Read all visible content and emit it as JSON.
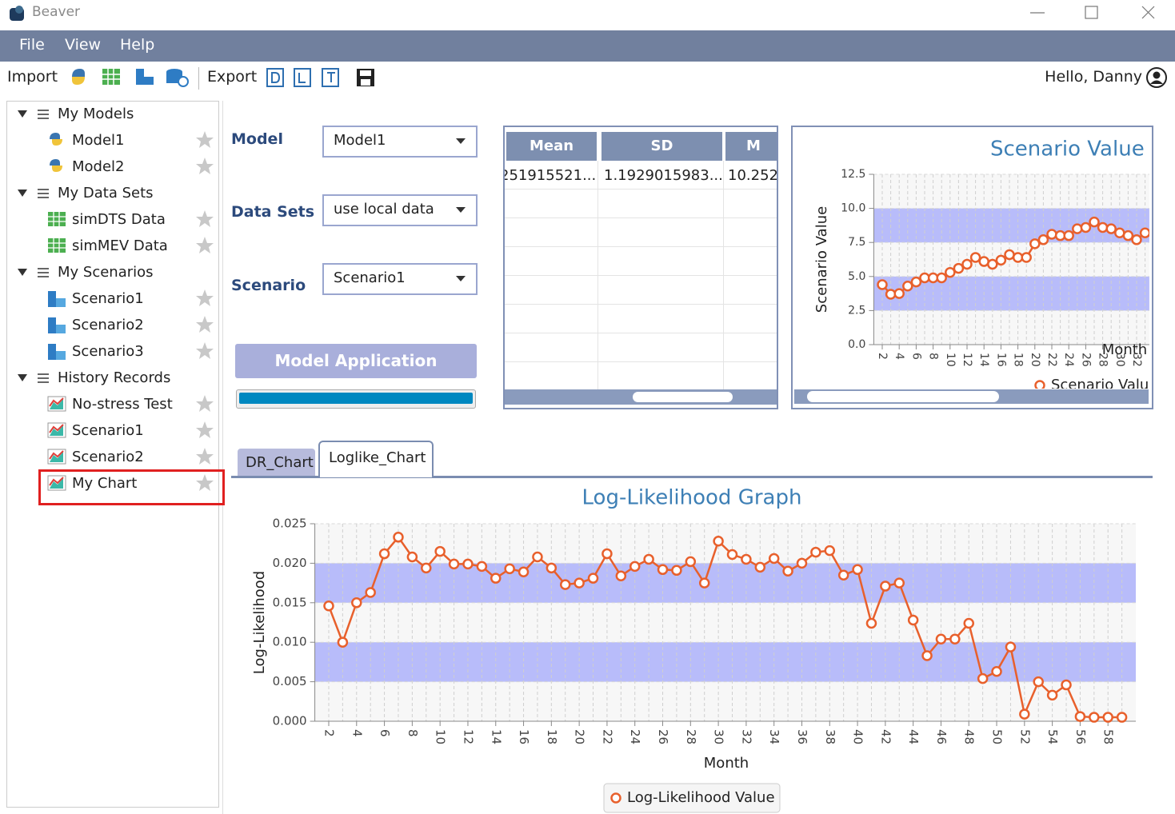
{
  "window": {
    "title": "Beaver"
  },
  "menu": [
    "File",
    "View",
    "Help"
  ],
  "toolbar": {
    "import": "Import",
    "export": "Export",
    "greeting": "Hello, Danny"
  },
  "tree": [
    {
      "label": "My Models",
      "items": [
        "Model1",
        "Model2"
      ]
    },
    {
      "label": "My Data Sets",
      "items": [
        "simDTS Data",
        "simMEV Data"
      ]
    },
    {
      "label": "My Scenarios",
      "items": [
        "Scenario1",
        "Scenario2",
        "Scenario3"
      ]
    },
    {
      "label": "History Records",
      "items": [
        "No-stress Test",
        "Scenario1",
        "Scenario2",
        "My Chart"
      ]
    }
  ],
  "form": {
    "model_label": "Model",
    "model_value": "Model1",
    "datasets_label": "Data Sets",
    "datasets_value": "use local data",
    "scenario_label": "Scenario",
    "scenario_value": "Scenario1",
    "button": "Model Application"
  },
  "table": {
    "columns": [
      "Mean",
      "SD",
      "M"
    ],
    "rows": [
      [
        "251915521...",
        "1.1929015983...",
        "10.252"
      ]
    ]
  },
  "tabs": [
    "DR_Chart",
    "Loglike_Chart"
  ],
  "chart_data": [
    {
      "type": "line",
      "title": "Scenario Value G",
      "x_label": "Month",
      "y_label": "Scenario Value",
      "x": [
        2,
        3,
        4,
        5,
        6,
        7,
        8,
        9,
        10,
        11,
        12,
        13,
        14,
        15,
        16,
        17,
        18,
        19,
        20,
        21,
        22,
        23,
        24,
        25,
        26,
        27,
        28,
        29,
        30,
        31,
        32,
        33
      ],
      "series": [
        {
          "name": "Scenario Valu",
          "color": "#e8602c",
          "values": [
            4.4,
            3.7,
            3.75,
            4.3,
            4.6,
            4.9,
            4.9,
            4.9,
            5.3,
            5.6,
            5.9,
            6.4,
            6.1,
            5.9,
            6.2,
            6.6,
            6.4,
            6.4,
            7.4,
            7.7,
            8.1,
            8.0,
            8.0,
            8.5,
            8.6,
            9.0,
            8.6,
            8.5,
            8.2,
            8.0,
            7.7,
            8.2
          ]
        }
      ],
      "xlim": [
        1,
        33.5
      ],
      "xticks": [
        2,
        4,
        6,
        8,
        10,
        12,
        14,
        16,
        18,
        20,
        22,
        24,
        26,
        28,
        30,
        32
      ],
      "ylim": [
        0,
        12.5
      ],
      "yticks": [
        {
          "value": 0,
          "label": "0.0"
        },
        2.5,
        {
          "value": 5,
          "label": "5.0"
        },
        7.5,
        {
          "value": 10,
          "label": "10.0"
        },
        12.5
      ],
      "grid": true
    },
    {
      "type": "line",
      "title": "Log-Likelihood Graph",
      "x_label": "Month",
      "y_label": "Log-Likelihood",
      "x": [
        2,
        3,
        4,
        5,
        6,
        7,
        8,
        9,
        10,
        11,
        12,
        13,
        14,
        15,
        16,
        17,
        18,
        19,
        20,
        21,
        22,
        23,
        24,
        25,
        26,
        27,
        28,
        29,
        30,
        31,
        32,
        33,
        34,
        35,
        36,
        37,
        38,
        39,
        40,
        41,
        42,
        43,
        44,
        45,
        46,
        47,
        48,
        49,
        50,
        51,
        52,
        53,
        54,
        55,
        56,
        57,
        58,
        59
      ],
      "series": [
        {
          "name": "Log-Likelihood Value",
          "color": "#e8602c",
          "values": [
            0.0146,
            0.01,
            0.015,
            0.0163,
            0.0212,
            0.0233,
            0.0208,
            0.0194,
            0.0215,
            0.0199,
            0.0199,
            0.0196,
            0.0181,
            0.0193,
            0.0189,
            0.0208,
            0.0194,
            0.0173,
            0.0175,
            0.0181,
            0.0212,
            0.0184,
            0.0196,
            0.0205,
            0.0192,
            0.0191,
            0.0202,
            0.0175,
            0.0228,
            0.0211,
            0.0205,
            0.0195,
            0.0206,
            0.019,
            0.02,
            0.0214,
            0.0216,
            0.0185,
            0.0192,
            0.0124,
            0.0171,
            0.0175,
            0.0128,
            0.0083,
            0.0104,
            0.0104,
            0.0124,
            0.0054,
            0.0063,
            0.0094,
            0.0009,
            0.005,
            0.0033,
            0.0046,
            0.0006,
            0.0005,
            0.0005,
            0.0005
          ]
        }
      ],
      "xlim": [
        1,
        60
      ],
      "xticks": [
        2,
        4,
        6,
        8,
        10,
        12,
        14,
        16,
        18,
        20,
        22,
        24,
        26,
        28,
        30,
        32,
        34,
        36,
        38,
        40,
        42,
        44,
        46,
        48,
        50,
        52,
        54,
        56,
        58
      ],
      "ylim": [
        0,
        0.025
      ],
      "yticks": [
        {
          "value": 0,
          "label": "0.000"
        },
        {
          "value": 0.005,
          "label": "0.005"
        },
        {
          "value": 0.01,
          "label": "0.010"
        },
        {
          "value": 0.015,
          "label": "0.015"
        },
        {
          "value": 0.02,
          "label": "0.020"
        },
        {
          "value": 0.025,
          "label": "0.025"
        }
      ],
      "grid": true
    }
  ]
}
